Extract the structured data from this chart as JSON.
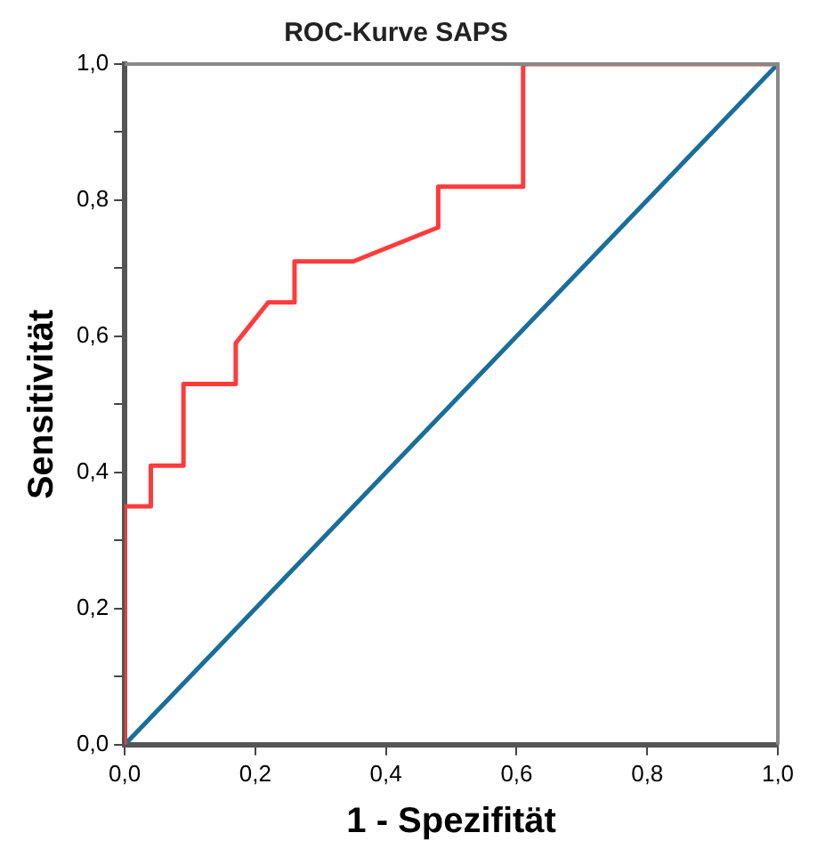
{
  "chart_data": {
    "type": "line",
    "title": "ROC-Kurve SAPS",
    "xlabel": "1 - Spezifität",
    "ylabel": "Sensitivität",
    "xlim": [
      0,
      1
    ],
    "ylim": [
      0,
      1
    ],
    "xticks": [
      {
        "value": 0,
        "label": "0,0"
      },
      {
        "value": 0.2,
        "label": "0,2"
      },
      {
        "value": 0.4,
        "label": "0,4"
      },
      {
        "value": 0.6,
        "label": "0,6"
      },
      {
        "value": 0.8,
        "label": "0,8"
      },
      {
        "value": 1,
        "label": "1,0"
      }
    ],
    "yticks": [
      {
        "value": 0,
        "label": "0,0"
      },
      {
        "value": 0.1,
        "label": null
      },
      {
        "value": 0.2,
        "label": "0,2"
      },
      {
        "value": 0.3,
        "label": null
      },
      {
        "value": 0.4,
        "label": "0,4"
      },
      {
        "value": 0.5,
        "label": null
      },
      {
        "value": 0.6,
        "label": "0,6"
      },
      {
        "value": 0.7,
        "label": null
      },
      {
        "value": 0.8,
        "label": "0,8"
      },
      {
        "value": 0.9,
        "label": null
      },
      {
        "value": 1,
        "label": "1,0"
      }
    ],
    "grid": false,
    "legend": false,
    "marker": "none",
    "line_style": "solid",
    "series": [
      {
        "color": "#ff3b3b",
        "x": [
          0,
          0,
          0.04,
          0.04,
          0.09,
          0.09,
          0.17,
          0.17,
          0.22,
          0.26,
          0.26,
          0.35,
          0.48,
          0.48,
          0.61,
          0.61,
          1
        ],
        "values": [
          0,
          0.35,
          0.35,
          0.41,
          0.41,
          0.53,
          0.53,
          0.59,
          0.65,
          0.65,
          0.71,
          0.71,
          0.76,
          0.82,
          0.82,
          1,
          1
        ]
      },
      {
        "color": "#1a6e9a",
        "x": [
          0,
          1
        ],
        "values": [
          0,
          1
        ]
      }
    ]
  }
}
